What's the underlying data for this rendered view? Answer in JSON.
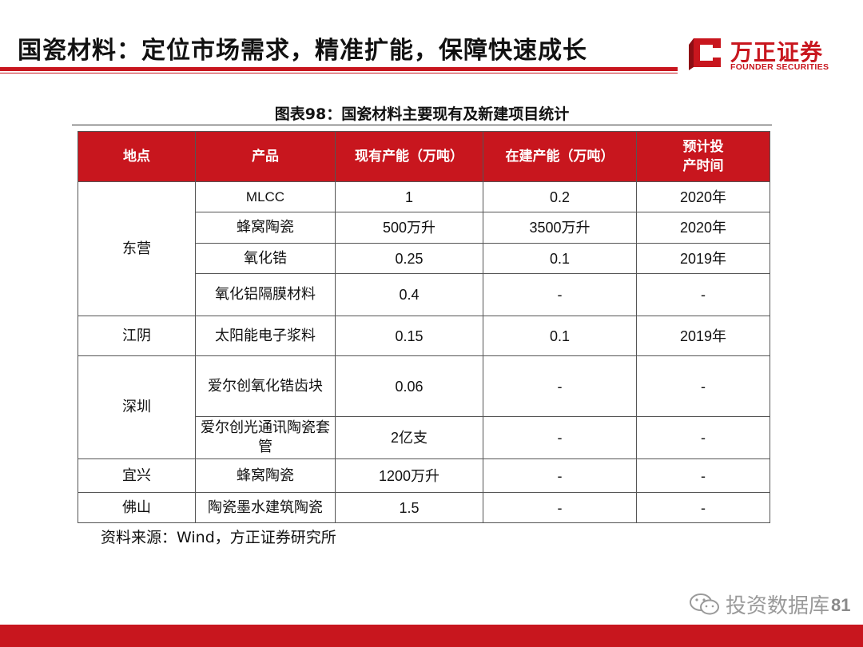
{
  "header": {
    "title": "国瓷材料：定位市场需求，精准扩能，保障快速成长",
    "logo_cn": "万正证券",
    "logo_en": "FOUNDER SECURITIES"
  },
  "table": {
    "caption": "图表98：国瓷材料主要现有及新建项目统计",
    "headers": [
      "地点",
      "产品",
      "现有产能（万吨）",
      "在建产能（万吨）",
      "预计投\n产时间"
    ],
    "groups": [
      {
        "location": "东营",
        "rows": [
          {
            "product": "MLCC",
            "existing": "1",
            "building": "0.2",
            "time": "2020年"
          },
          {
            "product": "蜂窝陶瓷",
            "existing": "500万升",
            "building": "3500万升",
            "time": "2020年"
          },
          {
            "product": "氧化锆",
            "existing": "0.25",
            "building": "0.1",
            "time": "2019年"
          },
          {
            "product": "氧化铝隔膜材料",
            "existing": "0.4",
            "building": "-",
            "time": "-"
          }
        ]
      },
      {
        "location": "江阴",
        "rows": [
          {
            "product": "太阳能电子浆料",
            "existing": "0.15",
            "building": "0.1",
            "time": "2019年"
          }
        ]
      },
      {
        "location": "深圳",
        "rows": [
          {
            "product": "爱尔创氧化锆齿块",
            "existing": "0.06",
            "building": "-",
            "time": "-"
          },
          {
            "product": "爱尔创光通讯陶瓷套管",
            "existing": "2亿支",
            "building": "-",
            "time": "-"
          }
        ]
      },
      {
        "location": "宜兴",
        "rows": [
          {
            "product": "蜂窝陶瓷",
            "existing": "1200万升",
            "building": "-",
            "time": "-"
          }
        ]
      },
      {
        "location": "佛山",
        "rows": [
          {
            "product": "陶瓷墨水建筑陶瓷",
            "existing": "1.5",
            "building": "-",
            "time": "-"
          }
        ]
      }
    ],
    "source": "资料来源：Wind，方正证券研究所"
  },
  "footer": {
    "watermark": "投资数据库",
    "page_number": "81"
  },
  "colors": {
    "accent": "#c8161e",
    "watermark": "#9a9a9a"
  }
}
